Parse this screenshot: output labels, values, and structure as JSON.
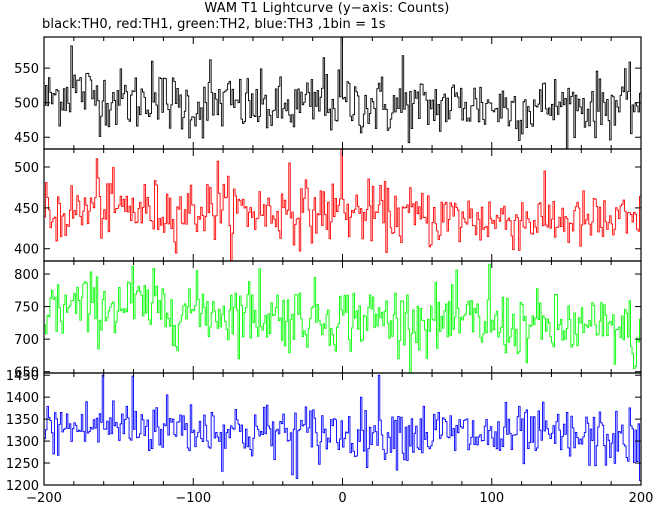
{
  "chart_data": {
    "type": "line",
    "title": "WAM T1 Lightcurve (y−axis: Counts)",
    "subtitle": "black:TH0, red:TH1, green:TH2, blue:TH3 ,1bin = 1s",
    "xlim": [
      -200,
      200
    ],
    "x_ticks": [
      -200,
      -100,
      0,
      100,
      200
    ],
    "x_tick_labels": [
      "−200",
      "−100",
      "0",
      "100",
      "200"
    ],
    "bin_seconds": 1,
    "grid": false,
    "panels": [
      {
        "name": "TH0",
        "color": "#000000",
        "ylim": [
          433,
          595
        ],
        "yticks": [
          450,
          500,
          550
        ],
        "profile": [
          [
            -200,
            503
          ],
          [
            -180,
            520
          ],
          [
            -160,
            507
          ],
          [
            -140,
            502
          ],
          [
            -120,
            503
          ],
          [
            -100,
            492
          ],
          [
            -80,
            500
          ],
          [
            -60,
            495
          ],
          [
            -40,
            490
          ],
          [
            -20,
            497
          ],
          [
            0,
            500
          ],
          [
            20,
            497
          ],
          [
            40,
            492
          ],
          [
            60,
            495
          ],
          [
            80,
            498
          ],
          [
            100,
            495
          ],
          [
            120,
            493
          ],
          [
            140,
            496
          ],
          [
            160,
            495
          ],
          [
            180,
            497
          ],
          [
            200,
            500
          ]
        ],
        "noise_sd": 22,
        "spikes": [
          [
            -181,
            582
          ],
          [
            0,
            595
          ],
          [
            -12,
            565
          ],
          [
            -88,
            562
          ],
          [
            -127,
            560
          ],
          [
            41,
            568
          ]
        ]
      },
      {
        "name": "TH1",
        "color": "#ff0000",
        "ylim": [
          385,
          522
        ],
        "yticks": [
          400,
          450,
          500
        ],
        "profile": [
          [
            -200,
            440
          ],
          [
            -180,
            445
          ],
          [
            -160,
            450
          ],
          [
            -140,
            448
          ],
          [
            -120,
            446
          ],
          [
            -100,
            448
          ],
          [
            -80,
            447
          ],
          [
            -60,
            446
          ],
          [
            -40,
            444
          ],
          [
            -20,
            445
          ],
          [
            0,
            444
          ],
          [
            20,
            443
          ],
          [
            40,
            440
          ],
          [
            60,
            438
          ],
          [
            80,
            437
          ],
          [
            100,
            435
          ],
          [
            120,
            436
          ],
          [
            140,
            436
          ],
          [
            160,
            433
          ],
          [
            180,
            432
          ],
          [
            200,
            430
          ]
        ],
        "noise_sd": 18,
        "spikes": [
          [
            -0.5,
            522
          ],
          [
            -35,
            505
          ],
          [
            -164,
            510
          ],
          [
            -83,
            507
          ]
        ]
      },
      {
        "name": "TH2",
        "color": "#00ff00",
        "ylim": [
          648,
          820
        ],
        "yticks": [
          650,
          700,
          750,
          800
        ],
        "profile": [
          [
            -200,
            745
          ],
          [
            -180,
            748
          ],
          [
            -160,
            752
          ],
          [
            -140,
            750
          ],
          [
            -120,
            746
          ],
          [
            -100,
            745
          ],
          [
            -80,
            742
          ],
          [
            -60,
            740
          ],
          [
            -40,
            735
          ],
          [
            -20,
            735
          ],
          [
            0,
            733
          ],
          [
            20,
            732
          ],
          [
            40,
            730
          ],
          [
            60,
            728
          ],
          [
            80,
            727
          ],
          [
            100,
            722
          ],
          [
            120,
            720
          ],
          [
            140,
            718
          ],
          [
            160,
            716
          ],
          [
            180,
            714
          ],
          [
            200,
            710
          ]
        ],
        "noise_sd": 25,
        "spikes": [
          [
            99,
            815
          ],
          [
            -140,
            812
          ],
          [
            -55,
            808
          ],
          [
            196,
            655
          ]
        ]
      },
      {
        "name": "TH3",
        "color": "#0000ff",
        "ylim": [
          1200,
          1455
        ],
        "yticks": [
          1200,
          1250,
          1300,
          1350,
          1400,
          1450
        ],
        "profile": [
          [
            -200,
            1325
          ],
          [
            -180,
            1330
          ],
          [
            -160,
            1335
          ],
          [
            -140,
            1335
          ],
          [
            -120,
            1335
          ],
          [
            -100,
            1330
          ],
          [
            -80,
            1325
          ],
          [
            -60,
            1320
          ],
          [
            -40,
            1320
          ],
          [
            -20,
            1318
          ],
          [
            0,
            1320
          ],
          [
            20,
            1322
          ],
          [
            40,
            1320
          ],
          [
            60,
            1318
          ],
          [
            80,
            1315
          ],
          [
            100,
            1310
          ],
          [
            120,
            1312
          ],
          [
            140,
            1310
          ],
          [
            160,
            1305
          ],
          [
            180,
            1305
          ],
          [
            200,
            1300
          ]
        ],
        "noise_sd": 33,
        "spikes": [
          [
            -160,
            1450
          ],
          [
            -140,
            1448
          ],
          [
            25,
            1450
          ],
          [
            200,
            1210
          ],
          [
            -30,
            1215
          ]
        ]
      }
    ]
  }
}
